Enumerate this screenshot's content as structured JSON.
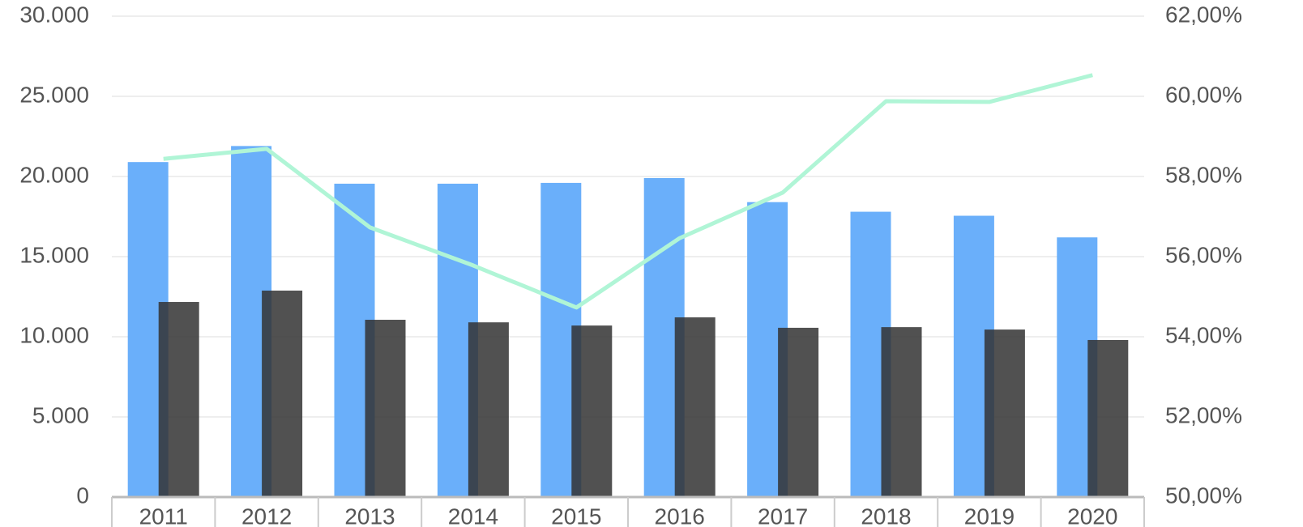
{
  "chart_data": {
    "type": "bar",
    "categories": [
      "2011",
      "2012",
      "2013",
      "2014",
      "2015",
      "2016",
      "2017",
      "2018",
      "2019",
      "2020"
    ],
    "series": [
      {
        "type": "bar",
        "color": "#6aaffa",
        "values": [
          20900,
          21900,
          19550,
          19550,
          19600,
          19900,
          18400,
          17800,
          17550,
          16200
        ]
      },
      {
        "type": "bar",
        "color": "#333333",
        "values": [
          12170,
          12880,
          11060,
          10900,
          10700,
          11210,
          10560,
          10600,
          10450,
          9800
        ]
      },
      {
        "type": "line",
        "axis": "y2",
        "color": "#b0f5d6",
        "values": [
          58.44,
          58.69,
          56.73,
          55.78,
          54.73,
          56.46,
          57.6,
          59.88,
          59.86,
          60.53
        ]
      }
    ],
    "ylim": [
      0,
      30000
    ],
    "yticks": [
      0,
      {
        "value": 5000,
        "label": "5.000"
      },
      {
        "value": 10000,
        "label": "10.000"
      },
      {
        "value": 15000,
        "label": "15.000"
      },
      {
        "value": 20000,
        "label": "20.000"
      },
      {
        "value": 25000,
        "label": "25.000"
      },
      {
        "value": 30000,
        "label": "30.000"
      }
    ],
    "y2lim": [
      50,
      62
    ],
    "y2ticks": [
      {
        "value": 50,
        "label": "50,00%"
      },
      {
        "value": 52,
        "label": "52,00%"
      },
      {
        "value": 54,
        "label": "54,00%"
      },
      {
        "value": 56,
        "label": "56,00%"
      },
      {
        "value": 58,
        "label": "58,00%"
      },
      {
        "value": 60,
        "label": "60,00%"
      },
      {
        "value": 62,
        "label": "62,00%"
      }
    ],
    "grid": true
  }
}
